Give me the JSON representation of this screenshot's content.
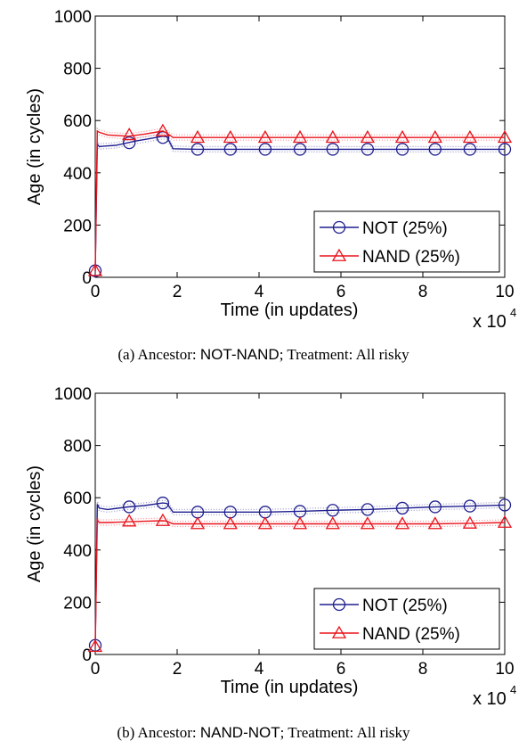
{
  "chart_data": [
    {
      "type": "line",
      "caption": {
        "prefix": "(a) Ancestor: ",
        "ancestor": "NOT-NAND",
        "suffix": "; Treatment: All risky"
      },
      "xlabel": "Time (in updates)",
      "ylabel": "Age (in cycles)",
      "x_multiplier": "x 10",
      "x_multiplier_exp": "4",
      "xlim": [
        0,
        10
      ],
      "ylim": [
        0,
        1000
      ],
      "xticks": [
        "0",
        "2",
        "4",
        "6",
        "8",
        "10"
      ],
      "yticks": [
        "0",
        "200",
        "400",
        "600",
        "800",
        "1000"
      ],
      "grid": false,
      "legend_position": "bottom-right",
      "series": [
        {
          "name": "NOT (25%)",
          "color": "#1f1f8f",
          "marker": "circle",
          "x": [
            0,
            0.05,
            0.1,
            0.2,
            0.5,
            0.8,
            1.0,
            1.3,
            1.65,
            1.75,
            1.9,
            2.5,
            3.3,
            4.15,
            5.0,
            5.8,
            6.65,
            7.5,
            8.3,
            9.15,
            10.0
          ],
          "y": [
            25,
            510,
            500,
            502,
            505,
            515,
            522,
            530,
            540,
            538,
            492,
            490,
            490,
            490,
            490,
            490,
            490,
            490,
            490,
            490,
            490
          ],
          "marker_x": [
            0,
            0.83,
            1.65,
            2.5,
            3.3,
            4.15,
            5.0,
            5.8,
            6.65,
            7.5,
            8.3,
            9.15,
            10.0
          ],
          "marker_y": [
            25,
            515,
            535,
            490,
            490,
            490,
            490,
            490,
            490,
            490,
            490,
            490,
            490
          ]
        },
        {
          "name": "NAND (25%)",
          "color": "#e8141c",
          "marker": "triangle",
          "x": [
            0,
            0.05,
            0.1,
            0.3,
            0.8,
            1.2,
            1.65,
            1.75,
            1.9,
            2.5,
            3.3,
            4.15,
            5.0,
            5.8,
            6.65,
            7.5,
            8.3,
            9.15,
            10.0
          ],
          "y": [
            25,
            560,
            555,
            545,
            540,
            548,
            560,
            552,
            535,
            535,
            535,
            535,
            535,
            535,
            535,
            535,
            535,
            535,
            535
          ],
          "marker_x": [
            0,
            0.83,
            1.65,
            2.5,
            3.3,
            4.15,
            5.0,
            5.8,
            6.65,
            7.5,
            8.3,
            9.15,
            10.0
          ],
          "marker_y": [
            25,
            545,
            560,
            535,
            535,
            535,
            535,
            535,
            535,
            535,
            535,
            535,
            535
          ]
        }
      ]
    },
    {
      "type": "line",
      "caption": {
        "prefix": "(b) Ancestor: ",
        "ancestor": "NAND-NOT",
        "suffix": "; Treatment: All risky"
      },
      "xlabel": "Time (in updates)",
      "ylabel": "Age (in cycles)",
      "x_multiplier": "x 10",
      "x_multiplier_exp": "4",
      "xlim": [
        0,
        10
      ],
      "ylim": [
        0,
        1000
      ],
      "xticks": [
        "0",
        "2",
        "4",
        "6",
        "8",
        "10"
      ],
      "yticks": [
        "0",
        "200",
        "400",
        "600",
        "800",
        "1000"
      ],
      "grid": false,
      "legend_position": "bottom-right",
      "series": [
        {
          "name": "NOT (25%)",
          "color": "#1f1f8f",
          "marker": "circle",
          "x": [
            0,
            0.05,
            0.1,
            0.3,
            0.8,
            1.2,
            1.65,
            1.75,
            1.9,
            2.5,
            3.3,
            4.15,
            5.0,
            5.8,
            6.65,
            7.5,
            8.3,
            9.15,
            10.0
          ],
          "y": [
            35,
            575,
            560,
            555,
            565,
            570,
            580,
            578,
            545,
            545,
            545,
            545,
            548,
            552,
            555,
            560,
            565,
            568,
            572
          ],
          "marker_x": [
            0,
            0.83,
            1.65,
            2.5,
            3.3,
            4.15,
            5.0,
            5.8,
            6.65,
            7.5,
            8.3,
            9.15,
            10.0
          ],
          "marker_y": [
            35,
            565,
            580,
            545,
            545,
            545,
            548,
            552,
            555,
            560,
            565,
            568,
            572
          ]
        },
        {
          "name": "NAND (25%)",
          "color": "#e8141c",
          "marker": "triangle",
          "x": [
            0,
            0.05,
            0.1,
            0.3,
            0.8,
            1.2,
            1.65,
            1.75,
            1.9,
            2.5,
            3.3,
            4.15,
            5.0,
            5.8,
            6.65,
            7.5,
            8.3,
            9.15,
            10.0
          ],
          "y": [
            30,
            515,
            505,
            505,
            508,
            510,
            512,
            510,
            500,
            500,
            500,
            500,
            500,
            500,
            500,
            500,
            500,
            502,
            505
          ],
          "marker_x": [
            0,
            0.83,
            1.65,
            2.5,
            3.3,
            4.15,
            5.0,
            5.8,
            6.65,
            7.5,
            8.3,
            9.15,
            10.0
          ],
          "marker_y": [
            30,
            510,
            512,
            500,
            500,
            500,
            500,
            500,
            500,
            500,
            500,
            502,
            505
          ]
        }
      ]
    }
  ]
}
